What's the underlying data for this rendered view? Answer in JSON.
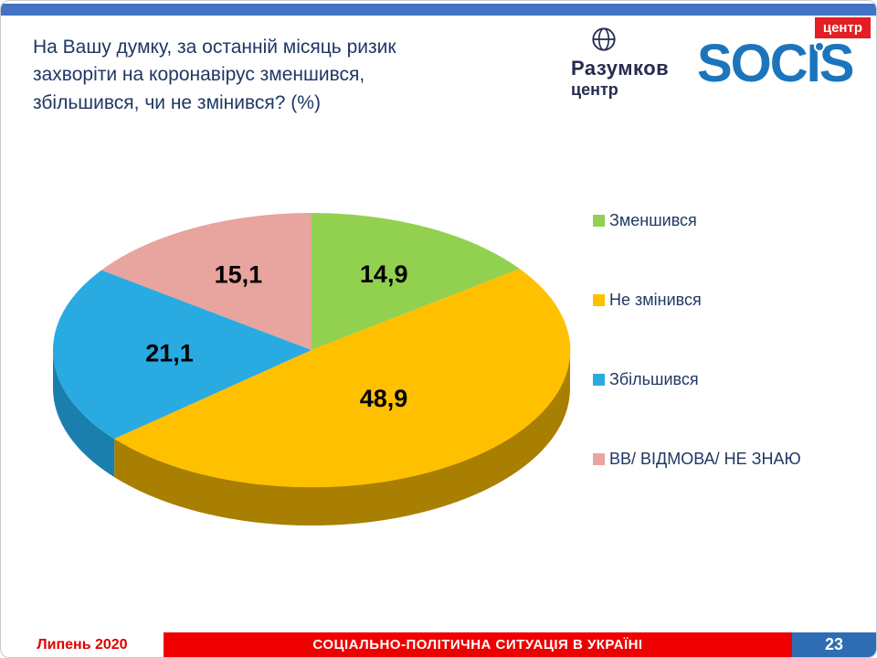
{
  "slide": {
    "title": "На Вашу думку, за останній місяць ризик захворіти на коронавірус зменшився, збільшився, чи не змінився? (%)",
    "footer": {
      "date": "Липень 2020",
      "caption": "СОЦІАЛЬНО-ПОЛІТИЧНА СИТУАЦІЯ В УКРАЇНІ",
      "page_number": "23"
    }
  },
  "logos": {
    "razumkov": {
      "line1": "Разумков",
      "line2": "центр"
    },
    "socis": {
      "text": "SOCIS",
      "badge": "центр"
    }
  },
  "theme": {
    "top_bar": "#4472C4",
    "title_text": "#1F3864",
    "legend_text": "#1F3864",
    "razumkov_navy": "#252C4F",
    "socis_blue": "#1C75BC",
    "badge_red": "#E31E24",
    "footer_red": "#EE0000",
    "footer_blue": "#2E6DB4",
    "date_text": "#E00000"
  },
  "chart_data": {
    "type": "pie",
    "effect": "3d",
    "start_angle": -90,
    "direction": "clockwise",
    "legend_position": "right",
    "labels": [
      "Зменшився",
      "Не змінився",
      "Збільшився",
      "ВВ/ ВІДМОВА/ НЕ ЗНАЮ"
    ],
    "values": [
      14.9,
      48.9,
      21.1,
      15.1
    ],
    "value_labels": [
      "14,9",
      "48,9",
      "21,1",
      "15,1"
    ],
    "colors": [
      "#92D050",
      "#FFC000",
      "#29ABE2",
      "#E8A49E"
    ],
    "side_colors": [
      "#6A9A2E",
      "#A87F00",
      "#1B7FAE",
      "#B8756E"
    ],
    "label_radius": [
      0.62,
      0.45,
      0.55,
      0.62
    ]
  }
}
